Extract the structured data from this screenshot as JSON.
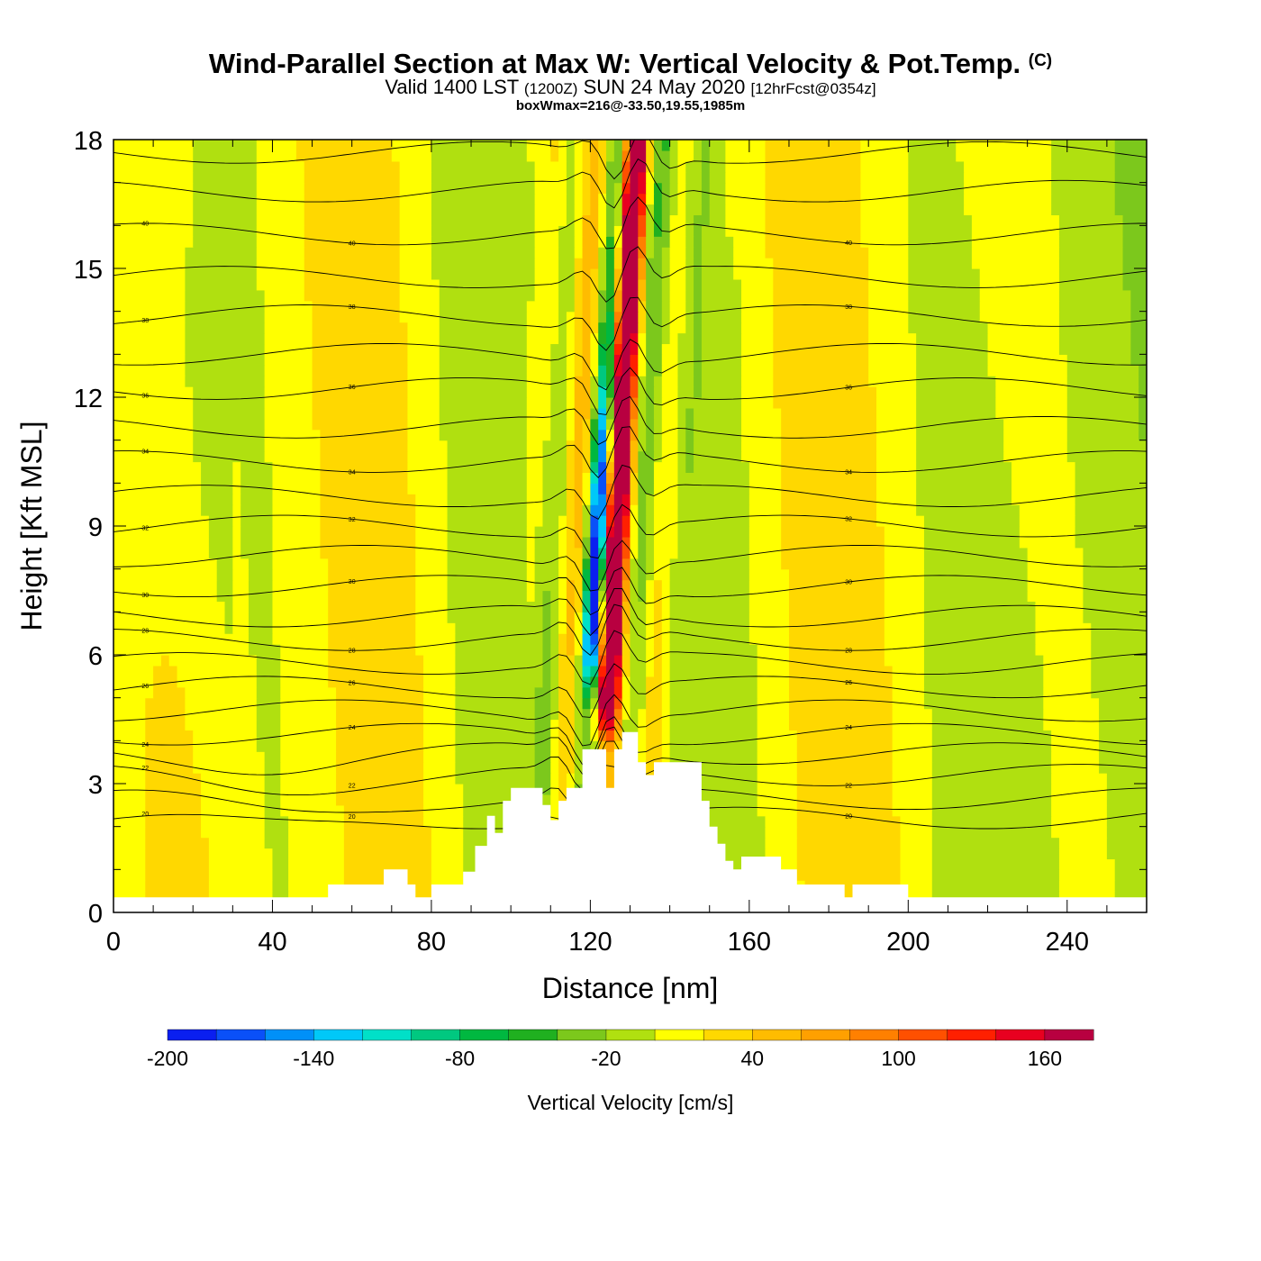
{
  "title": {
    "main": "Wind-Parallel Section at Max W: Vertical Velocity & Pot.Temp.",
    "copyright": "(C)",
    "valid_prefix": "Valid 1400 LST",
    "valid_utc": "(1200Z)",
    "valid_date": "SUN 24 May 2020",
    "forecast_info": "[12hrFcst@0354z]",
    "box_info": "boxWmax=216@-33.50,19.55,1985m"
  },
  "colors": {
    "terrain": "#ffffff",
    "isentrope": "#000000",
    "frame": "#000000"
  },
  "chart_data": {
    "type": "heatmap",
    "title": "Wind-Parallel Section at Max W: Vertical Velocity & Pot.Temp.",
    "xlabel": "Distance [nm]",
    "ylabel": "Height [Kft MSL]",
    "xlim": [
      0,
      260
    ],
    "ylim": [
      0,
      18
    ],
    "xticks": [
      "0",
      "40",
      "80",
      "120",
      "160",
      "200",
      "240"
    ],
    "yticks": [
      "0",
      "3",
      "6",
      "9",
      "12",
      "15",
      "18"
    ],
    "colorbar": {
      "title": "Vertical Velocity [cm/s]",
      "labels": [
        "-200",
        "-140",
        "-80",
        "-20",
        "40",
        "100",
        "160"
      ],
      "label_values": [
        -200,
        -140,
        -80,
        -20,
        40,
        100,
        160
      ],
      "range": [
        -200,
        180
      ],
      "step": 20,
      "colors": [
        "#0a1ff0",
        "#0a50f8",
        "#0090f8",
        "#00c8f8",
        "#00e0c8",
        "#00c880",
        "#00b840",
        "#20b020",
        "#7cc81c",
        "#b0e010",
        "#ffff00",
        "#ffd800",
        "#ffbc00",
        "#ffa000",
        "#ff8000",
        "#ff5000",
        "#ff2000",
        "#e80020",
        "#b80040"
      ]
    },
    "potential_temperature_labels": [
      "20",
      "22",
      "24",
      "26",
      "28",
      "30",
      "32",
      "34",
      "36",
      "38",
      "40"
    ],
    "isentrope_values_C": [
      20,
      21,
      22,
      23,
      24,
      25,
      26,
      27,
      28,
      29,
      30,
      31,
      32,
      33,
      34,
      35,
      36,
      37,
      38,
      39,
      40,
      41,
      42
    ],
    "isentrope_heights_kft": [
      2.2,
      2.65,
      3.2,
      3.7,
      4.15,
      4.7,
      5.25,
      5.8,
      6.35,
      6.9,
      7.6,
      8.3,
      9.0,
      9.7,
      10.5,
      11.3,
      12.2,
      13.0,
      13.9,
      14.8,
      15.8,
      16.8,
      17.7
    ],
    "terrain_profile": {
      "distance_nm": [
        0,
        10,
        20,
        30,
        40,
        50,
        54,
        60,
        66,
        68,
        72,
        74,
        76,
        80,
        84,
        88,
        91,
        94,
        96,
        98,
        100,
        104,
        108,
        110,
        112,
        114,
        116,
        118,
        120,
        122,
        124,
        126,
        128,
        130,
        132,
        134,
        136,
        138,
        140,
        144,
        148,
        150,
        152,
        154,
        156,
        158,
        160,
        164,
        168,
        172,
        176,
        180,
        184,
        186,
        190,
        196,
        200,
        210,
        220,
        240,
        260
      ],
      "height_kft": [
        0.35,
        0.35,
        0.35,
        0.35,
        0.35,
        0.35,
        0.65,
        0.65,
        0.65,
        1.0,
        1.0,
        0.65,
        0.35,
        0.65,
        0.65,
        0.95,
        1.55,
        2.25,
        1.85,
        2.6,
        2.9,
        2.9,
        2.5,
        2.15,
        2.6,
        2.9,
        2.9,
        3.8,
        3.8,
        3.8,
        2.9,
        3.8,
        4.2,
        4.2,
        3.5,
        3.2,
        3.5,
        3.5,
        3.5,
        3.5,
        2.6,
        2.0,
        1.6,
        1.2,
        1.0,
        1.3,
        1.3,
        1.3,
        1.0,
        0.65,
        0.65,
        0.65,
        0.35,
        0.65,
        0.65,
        0.65,
        0.35,
        0.35,
        0.35,
        0.35,
        0.35
      ]
    },
    "updraft_max": {
      "value_cm_s": 216,
      "location": "-33.50,19.55",
      "height_m": 1985
    }
  }
}
